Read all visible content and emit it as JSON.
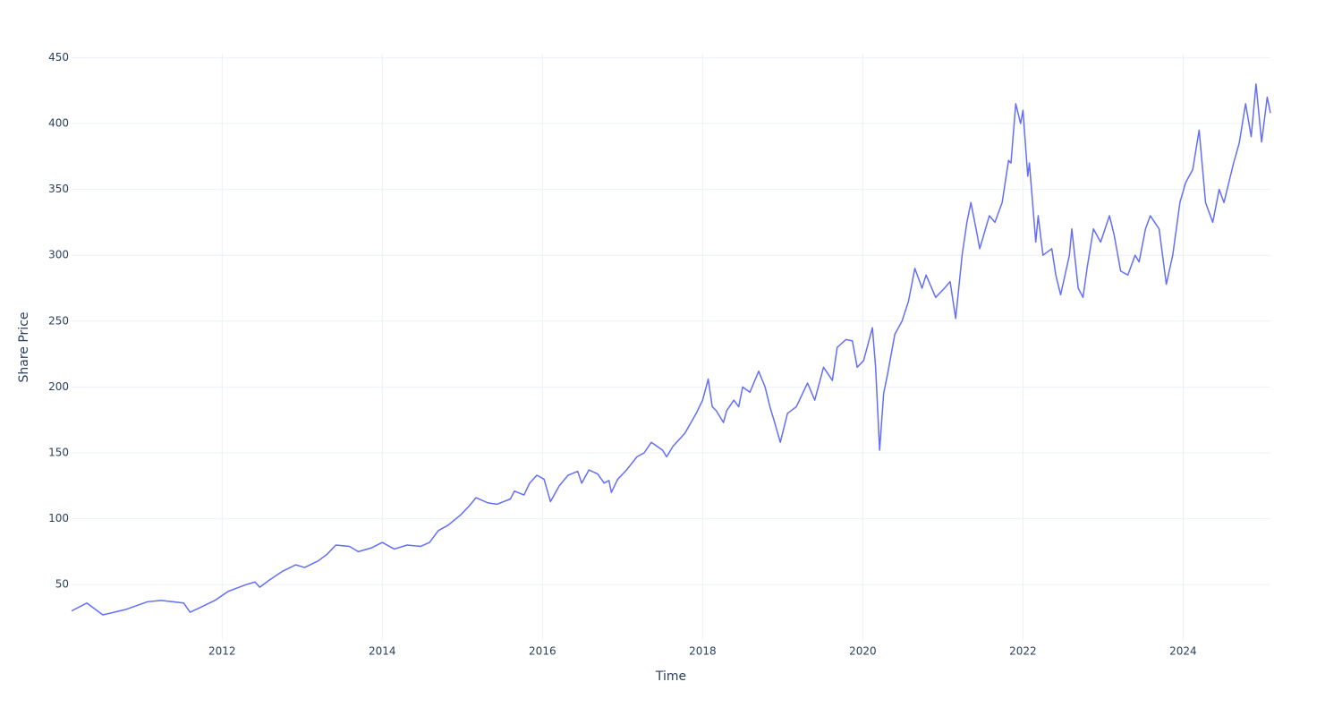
{
  "chart_data": {
    "type": "line",
    "xlabel": "Time",
    "ylabel": "Share Price",
    "x": [
      2010.12,
      2010.31,
      2010.51,
      2010.79,
      2011.07,
      2011.24,
      2011.52,
      2011.6,
      2011.74,
      2011.91,
      2012.08,
      2012.3,
      2012.41,
      2012.47,
      2012.58,
      2012.75,
      2012.92,
      2013.03,
      2013.2,
      2013.31,
      2013.42,
      2013.59,
      2013.7,
      2013.87,
      2014.0,
      2014.15,
      2014.31,
      2014.48,
      2014.59,
      2014.7,
      2014.82,
      2014.98,
      2015.09,
      2015.17,
      2015.32,
      2015.43,
      2015.6,
      2015.65,
      2015.77,
      2015.84,
      2015.93,
      2016.02,
      2016.1,
      2016.21,
      2016.32,
      2016.44,
      2016.49,
      2016.58,
      2016.69,
      2016.77,
      2016.83,
      2016.86,
      2016.94,
      2017.05,
      2017.18,
      2017.27,
      2017.36,
      2017.5,
      2017.55,
      2017.63,
      2017.78,
      2017.92,
      2018.0,
      2018.07,
      2018.12,
      2018.17,
      2018.26,
      2018.3,
      2018.39,
      2018.45,
      2018.5,
      2018.59,
      2018.7,
      2018.78,
      2018.84,
      2018.89,
      2018.97,
      2019.06,
      2019.17,
      2019.31,
      2019.4,
      2019.51,
      2019.62,
      2019.68,
      2019.79,
      2019.87,
      2019.93,
      2020.01,
      2020.12,
      2020.16,
      2020.21,
      2020.26,
      2020.31,
      2020.4,
      2020.49,
      2020.57,
      2020.65,
      2020.74,
      2020.79,
      2020.91,
      2021.02,
      2021.09,
      2021.16,
      2021.24,
      2021.3,
      2021.35,
      2021.43,
      2021.46,
      2021.58,
      2021.65,
      2021.74,
      2021.82,
      2021.85,
      2021.91,
      2021.97,
      2022.0,
      2022.06,
      2022.08,
      2022.16,
      2022.19,
      2022.25,
      2022.36,
      2022.41,
      2022.47,
      2022.58,
      2022.61,
      2022.69,
      2022.75,
      2022.8,
      2022.88,
      2022.97,
      2023.08,
      2023.14,
      2023.22,
      2023.31,
      2023.4,
      2023.45,
      2023.53,
      2023.59,
      2023.7,
      2023.79,
      2023.87,
      2023.96,
      2024.03,
      2024.12,
      2024.2,
      2024.28,
      2024.37,
      2024.45,
      2024.51,
      2024.63,
      2024.7,
      2024.78,
      2024.85,
      2024.91,
      2024.98,
      2025.05,
      2025.09
    ],
    "series": [
      {
        "name": "Share Price",
        "color": "#636efa",
        "values": [
          30,
          36,
          27,
          31,
          37,
          38,
          36,
          29,
          33,
          38,
          45,
          50,
          52,
          48,
          53,
          60,
          65,
          63,
          68,
          73,
          80,
          79,
          75,
          78,
          82,
          77,
          80,
          79,
          82,
          91,
          95,
          103,
          110,
          116,
          112,
          111,
          115,
          121,
          118,
          127,
          133,
          130,
          113,
          125,
          133,
          136,
          127,
          137,
          134,
          127,
          129,
          120,
          130,
          137,
          147,
          150,
          158,
          152,
          147,
          155,
          165,
          180,
          190,
          206,
          185,
          182,
          173,
          182,
          190,
          185,
          200,
          196,
          212,
          200,
          185,
          175,
          158,
          180,
          185,
          203,
          190,
          215,
          205,
          230,
          236,
          235,
          215,
          220,
          245,
          215,
          152,
          195,
          210,
          240,
          250,
          265,
          290,
          275,
          285,
          268,
          275,
          280,
          252,
          300,
          325,
          340,
          315,
          305,
          330,
          325,
          340,
          372,
          370,
          415,
          400,
          410,
          360,
          370,
          310,
          330,
          300,
          305,
          285,
          270,
          300,
          320,
          275,
          268,
          290,
          320,
          310,
          330,
          315,
          288,
          285,
          300,
          295,
          320,
          330,
          320,
          278,
          300,
          340,
          355,
          365,
          395,
          340,
          325,
          350,
          340,
          370,
          385,
          415,
          390,
          430,
          386,
          420,
          408
        ]
      }
    ],
    "xlim": [
      2010.12,
      2025.09
    ],
    "xticks": [
      2012,
      2014,
      2016,
      2018,
      2020,
      2022,
      2024
    ],
    "ylim": [
      8,
      453
    ],
    "yticks": [
      50,
      100,
      150,
      200,
      250,
      300,
      350,
      400,
      450
    ],
    "grid": true
  }
}
